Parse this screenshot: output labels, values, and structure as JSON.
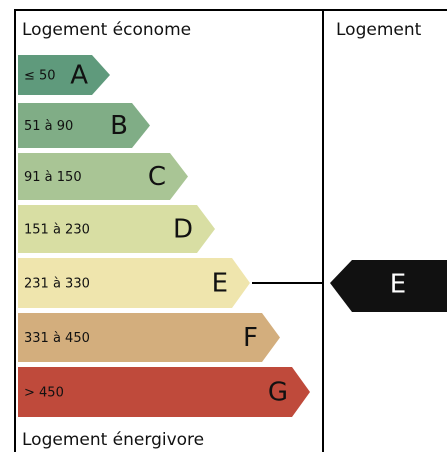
{
  "top_label": "Logement économe",
  "bottom_label": "Logement énergivore",
  "right_header": "Logement",
  "current_class": "E",
  "classes": [
    {
      "range": "≤ 50",
      "letter": "A",
      "color": "#5f9a7c"
    },
    {
      "range": "51 à 90",
      "letter": "B",
      "color": "#80ad86"
    },
    {
      "range": "91 à 150",
      "letter": "C",
      "color": "#a9c595"
    },
    {
      "range": "151 à 230",
      "letter": "D",
      "color": "#d8dea3"
    },
    {
      "range": "231 à 330",
      "letter": "E",
      "color": "#efe5ad"
    },
    {
      "range": "331 à 450",
      "letter": "F",
      "color": "#d3ae7d"
    },
    {
      "range": "> 450",
      "letter": "G",
      "color": "#bf4a3b"
    }
  ]
}
